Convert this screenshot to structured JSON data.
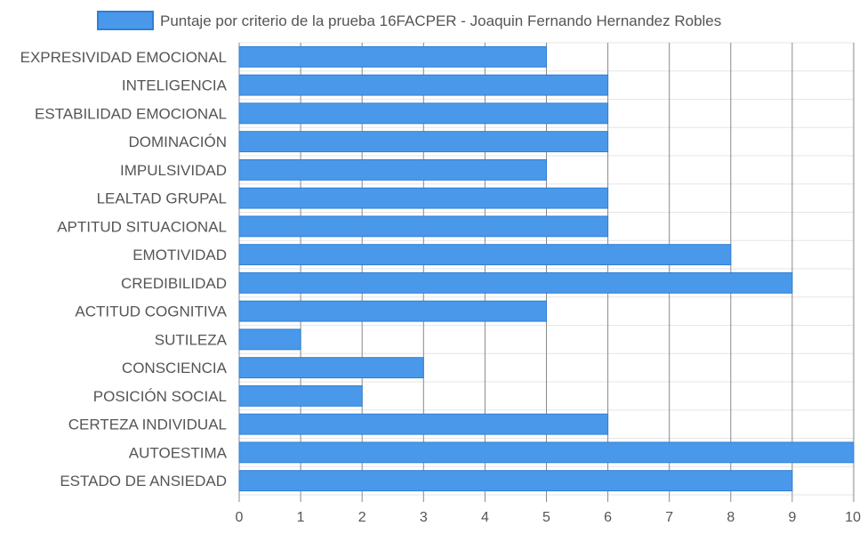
{
  "colors": {
    "bar_fill": "#4a98ea",
    "bar_stroke": "#2f7fd6",
    "grid_vertical": "#888888",
    "grid_horizontal": "#e6e6e6",
    "text": "#555555"
  },
  "chart_data": {
    "type": "bar",
    "orientation": "horizontal",
    "legend": {
      "position": "top",
      "label": "Puntaje por criterio de la prueba 16FACPER - Joaquin Fernando Hernandez Robles"
    },
    "categories": [
      "EXPRESIVIDAD EMOCIONAL",
      "INTELIGENCIA",
      "ESTABILIDAD EMOCIONAL",
      "DOMINACIÓN",
      "IMPULSIVIDAD",
      "LEALTAD GRUPAL",
      "APTITUD SITUACIONAL",
      "EMOTIVIDAD",
      "CREDIBILIDAD",
      "ACTITUD COGNITIVA",
      "SUTILEZA",
      "CONSCIENCIA",
      "POSICIÓN SOCIAL",
      "CERTEZA INDIVIDUAL",
      "AUTOESTIMA",
      "ESTADO DE ANSIEDAD"
    ],
    "series": [
      {
        "name": "Puntaje por criterio de la prueba 16FACPER - Joaquin Fernando Hernandez Robles",
        "values": [
          5,
          6,
          6,
          6,
          5,
          6,
          6,
          8,
          9,
          5,
          1,
          3,
          2,
          6,
          10,
          9
        ]
      }
    ],
    "xlim": [
      0,
      10
    ],
    "xticks": [
      "0",
      "1",
      "2",
      "3",
      "4",
      "5",
      "6",
      "7",
      "8",
      "9",
      "10"
    ],
    "grid": true
  }
}
